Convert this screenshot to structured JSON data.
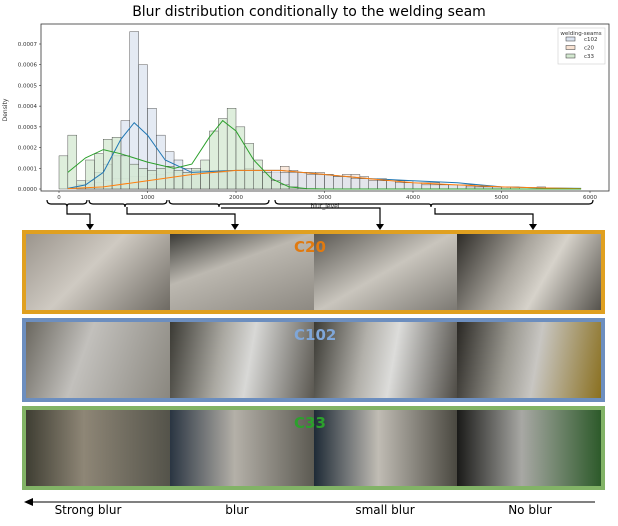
{
  "chart_data": {
    "type": "bar",
    "title": "Blur distribution conditionally to the welding seam",
    "xlabel": "blur_level",
    "ylabel": "Density",
    "xlim": [
      -200,
      6200
    ],
    "ylim": [
      0,
      0.00075
    ],
    "xticks": [
      0,
      1000,
      2000,
      3000,
      4000,
      5000,
      6000
    ],
    "yticks": [
      0.0,
      0.0001,
      0.0002,
      0.0003,
      0.0004,
      0.0005,
      0.0006,
      0.0007
    ],
    "ytick_labels": [
      "0.0000",
      "0.0001",
      "0.0002",
      "0.0003",
      "0.0004",
      "0.0005",
      "0.0006",
      "0.0007"
    ],
    "legend": {
      "title": "welding-seams",
      "placement": "top-right"
    },
    "bin_width": 100,
    "series": [
      {
        "name": "c102",
        "color": "#1f77b4",
        "fill": "#dbe3ef",
        "hist": [
          0,
          0,
          2e-05,
          4e-05,
          8e-05,
          0.00012,
          0.00016,
          0.00033,
          0.00076,
          0.0006,
          0.00039,
          0.00026,
          0.00018,
          0.00014,
          0.0001,
          9e-05,
          8e-05,
          8e-05,
          8e-05,
          9e-05,
          9e-05,
          0.0001,
          9e-05,
          9e-05,
          9e-05,
          8e-05,
          8e-05,
          8e-05,
          7e-05,
          7e-05,
          7e-05,
          6e-05,
          6e-05,
          5e-05,
          5e-05,
          4e-05,
          4e-05,
          4e-05,
          3e-05,
          3e-05,
          3e-05,
          2e-05,
          2e-05,
          2e-05,
          2e-05,
          2e-05,
          1e-05,
          1e-05,
          1e-05,
          1e-05,
          1e-05,
          0,
          0,
          0,
          1e-05,
          0,
          0,
          0,
          0,
          0
        ],
        "kde_x": [
          100,
          300,
          500,
          700,
          850,
          1000,
          1200,
          1500,
          2000,
          2500,
          3000,
          3500,
          4000,
          4500,
          5000,
          5500,
          5900
        ],
        "kde_y": [
          3e-06,
          2e-05,
          8e-05,
          0.00024,
          0.00032,
          0.00026,
          0.00014,
          8e-05,
          9e-05,
          9e-05,
          7e-05,
          5e-05,
          4e-05,
          3e-05,
          1e-05,
          5e-06,
          3e-06
        ]
      },
      {
        "name": "c20",
        "color": "#ff7f0e",
        "fill": "#f8e2d2",
        "hist": [
          0,
          0,
          1e-05,
          2e-05,
          3e-05,
          4e-05,
          5e-05,
          5e-05,
          6e-05,
          6e-05,
          7e-05,
          7e-05,
          8e-05,
          8e-05,
          8e-05,
          9e-05,
          9e-05,
          9e-05,
          9e-05,
          9e-05,
          9e-05,
          9e-05,
          9e-05,
          9e-05,
          8e-05,
          0.00011,
          9e-05,
          8e-05,
          8e-05,
          8e-05,
          7e-05,
          6e-05,
          7e-05,
          7e-05,
          6e-05,
          5e-05,
          5e-05,
          4e-05,
          4e-05,
          4e-05,
          3e-05,
          3e-05,
          3e-05,
          2e-05,
          2e-05,
          2e-05,
          2e-05,
          1e-05,
          1e-05,
          1e-05,
          1e-05,
          1e-05,
          0,
          0,
          0,
          0,
          0,
          0,
          0,
          0
        ],
        "kde_x": [
          100,
          500,
          1000,
          1500,
          2000,
          2500,
          3000,
          3500,
          4000,
          4500,
          5000,
          5500,
          5900
        ],
        "kde_y": [
          2e-06,
          1e-05,
          4e-05,
          7e-05,
          9e-05,
          9e-05,
          7e-05,
          5e-05,
          3e-05,
          2e-05,
          1e-05,
          5e-06,
          2e-06
        ]
      },
      {
        "name": "c33",
        "color": "#2ca02c",
        "fill": "#d3e8d0",
        "hist": [
          0.00016,
          0.00026,
          4e-05,
          0.00014,
          0.00017,
          0.00024,
          0.00025,
          0.00016,
          0.00012,
          0.0001,
          9e-05,
          0.0001,
          0.00011,
          9e-05,
          8e-05,
          0.0001,
          0.00014,
          0.00028,
          0.00034,
          0.00039,
          0.0003,
          0.00022,
          0.00014,
          8e-05,
          4e-05,
          2e-05,
          1e-05,
          0,
          0,
          0,
          0,
          0,
          0,
          0,
          0,
          0,
          0,
          0,
          0,
          0,
          0,
          0,
          0,
          0,
          0,
          0,
          0,
          0,
          0,
          0,
          0,
          0,
          0,
          0,
          0,
          0,
          0,
          0,
          0,
          0
        ],
        "kde_x": [
          100,
          300,
          500,
          700,
          1000,
          1300,
          1500,
          1700,
          1850,
          2000,
          2200,
          2400,
          2600,
          2800,
          3000,
          4000,
          5900
        ],
        "kde_y": [
          8e-05,
          0.00015,
          0.00019,
          0.00017,
          0.00013,
          0.0001,
          0.00012,
          0.00025,
          0.00033,
          0.00028,
          0.00014,
          5e-05,
          1e-05,
          2e-06,
          0,
          0,
          0
        ]
      }
    ]
  },
  "panels": [
    {
      "label": "C20",
      "color": "#e0a020",
      "text_color": "#e07a10"
    },
    {
      "label": "C102",
      "color": "#6c8ebf",
      "text_color": "#7fa6d8"
    },
    {
      "label": "C33",
      "color": "#82b366",
      "text_color": "#2ca02c"
    }
  ],
  "blur_labels": [
    "Strong blur",
    "blur",
    "small blur",
    "No blur"
  ]
}
